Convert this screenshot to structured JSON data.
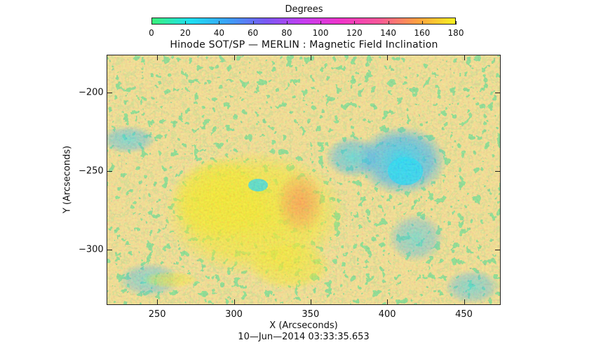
{
  "colorbar": {
    "title": "Degrees",
    "ticks": [
      "0",
      "20",
      "40",
      "60",
      "80",
      "100",
      "120",
      "140",
      "160",
      "180"
    ],
    "range": [
      0,
      180
    ],
    "colors": [
      "#39f07a",
      "#1de0f0",
      "#3aa0f8",
      "#7a58f4",
      "#c63cf0",
      "#f034c8",
      "#f85898",
      "#ffa040",
      "#f7f020"
    ]
  },
  "plot": {
    "title": "Hinode SOT/SP — MERLIN : Magnetic Field Inclination",
    "xlabel": "X (Arcseconds)",
    "ylabel": "Y (Arcseconds)",
    "xticks": [
      "250",
      "300",
      "350",
      "400",
      "450"
    ],
    "yticks": [
      "−200",
      "−250",
      "−300"
    ],
    "xlim": [
      217,
      474
    ],
    "ylim": [
      -335,
      -176
    ],
    "timestamp": "10—Jun—2014  03:33:35.653"
  }
}
